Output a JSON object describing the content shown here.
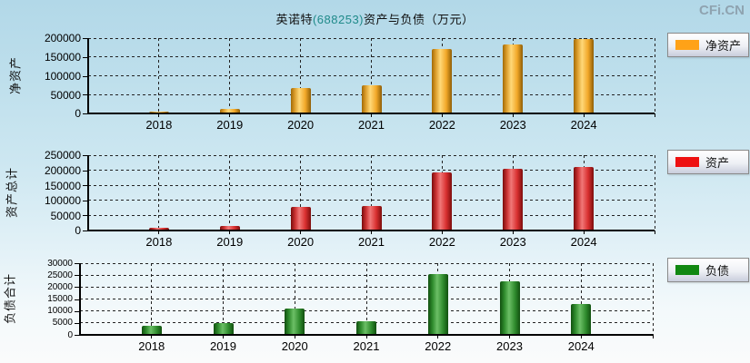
{
  "page": {
    "watermark": "CFi.CN",
    "title": {
      "prefix": "英诺特",
      "code": "(688253)",
      "suffix": "资产与负债（万元）"
    },
    "unit": "万元"
  },
  "colors": {
    "background_top": "#b2d8e8",
    "background_bottom": "#fafbfb",
    "title_code": "#1f8a8a",
    "watermark": "#8fa3b0",
    "net_assets": "#FFA217",
    "assets": "#EE1111",
    "liabilities": "#118811"
  },
  "chart_data": [
    {
      "type": "bar",
      "name": "net-assets",
      "ylabel": "净资产",
      "legend": "净资产",
      "color": "#FFA217",
      "categories": [
        "2018",
        "2019",
        "2020",
        "2021",
        "2022",
        "2023",
        "2024"
      ],
      "values": [
        5500,
        12000,
        68000,
        75000,
        170000,
        184000,
        198000
      ],
      "ylim": [
        0,
        200000
      ],
      "ytick_step": 50000,
      "grid": true,
      "legend_position": "right"
    },
    {
      "type": "bar",
      "name": "total-assets",
      "ylabel": "资产总计",
      "legend": "资产",
      "color": "#EE1111",
      "categories": [
        "2018",
        "2019",
        "2020",
        "2021",
        "2022",
        "2023",
        "2024"
      ],
      "values": [
        10000,
        15000,
        78000,
        80000,
        194000,
        206000,
        212000
      ],
      "ylim": [
        0,
        250000
      ],
      "ytick_step": 50000,
      "grid": true,
      "legend_position": "right"
    },
    {
      "type": "bar",
      "name": "total-liabilities",
      "ylabel": "负债合计",
      "legend": "负债",
      "color": "#118811",
      "categories": [
        "2018",
        "2019",
        "2020",
        "2021",
        "2022",
        "2023",
        "2024"
      ],
      "values": [
        3800,
        4900,
        11200,
        5800,
        25500,
        22500,
        13100
      ],
      "ylim": [
        0,
        30000
      ],
      "ytick_step": 5000,
      "grid": true,
      "legend_position": "right"
    }
  ]
}
